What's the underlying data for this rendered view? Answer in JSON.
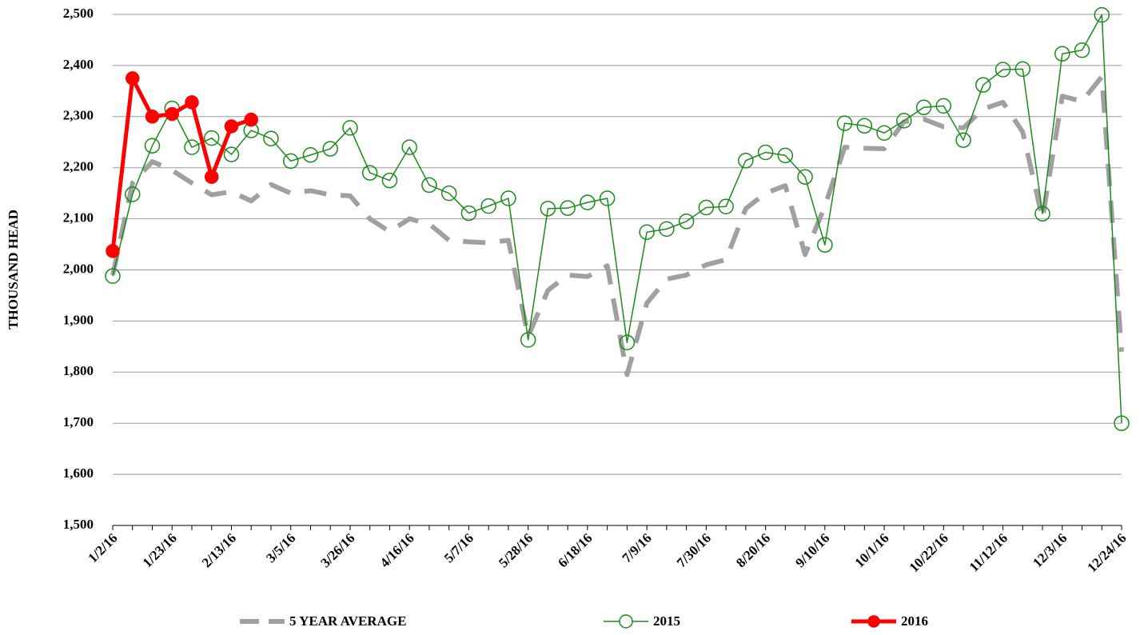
{
  "chart_data": {
    "type": "line",
    "y_label": "THOUSAND HEAD",
    "categories": [
      "1/2/16",
      null,
      null,
      "1/23/16",
      null,
      null,
      "2/13/16",
      null,
      null,
      "3/5/16",
      null,
      null,
      "3/26/16",
      null,
      null,
      "4/16/16",
      null,
      null,
      "5/7/16",
      null,
      null,
      "5/28/16",
      null,
      null,
      "6/18/16",
      null,
      null,
      "7/9/16",
      null,
      null,
      "7/30/16",
      null,
      null,
      "8/20/16",
      null,
      null,
      "9/10/16",
      null,
      null,
      "10/1/16",
      null,
      null,
      "10/22/16",
      null,
      null,
      "11/12/16",
      null,
      null,
      "12/3/16",
      null,
      null,
      "12/24/16"
    ],
    "ylim": [
      1500,
      2500
    ],
    "yticks": [
      {
        "value": 1500,
        "label": "1,500"
      },
      {
        "value": 1600,
        "label": "1,600"
      },
      {
        "value": 1700,
        "label": "1,700"
      },
      {
        "value": 1800,
        "label": "1,800"
      },
      {
        "value": 1900,
        "label": "1,900"
      },
      {
        "value": 2000,
        "label": "2,000"
      },
      {
        "value": 2100,
        "label": "2,100"
      },
      {
        "value": 2200,
        "label": "2,200"
      },
      {
        "value": 2300,
        "label": "2,300"
      },
      {
        "value": 2400,
        "label": "2,400"
      },
      {
        "value": 2500,
        "label": "2,500"
      }
    ],
    "grid": true,
    "legend": "bottom",
    "series": [
      {
        "name": "5 YEAR AVERAGE",
        "color": "#a0a0a0",
        "style": "dashed",
        "marker": "none",
        "values": [
          1990,
          2170,
          2212,
          2195,
          2170,
          2147,
          2153,
          2135,
          2167,
          2150,
          2155,
          2147,
          2145,
          2100,
          2075,
          2100,
          2090,
          2058,
          2055,
          2053,
          2058,
          1870,
          1960,
          1990,
          1987,
          2008,
          1795,
          1935,
          1982,
          1990,
          2010,
          2020,
          2120,
          2150,
          2165,
          2030,
          2125,
          2240,
          2238,
          2237,
          2290,
          2295,
          2280,
          2278,
          2315,
          2328,
          2270,
          2100,
          2340,
          2330,
          2378,
          1840
        ]
      },
      {
        "name": "2015",
        "color": "#1a8a1a",
        "style": "solid",
        "marker": "open-circle",
        "values": [
          1988,
          2148,
          2243,
          2316,
          2240,
          2258,
          2226,
          2273,
          2257,
          2213,
          2225,
          2237,
          2278,
          2190,
          2175,
          2240,
          2166,
          2150,
          2111,
          2125,
          2140,
          1863,
          2120,
          2121,
          2132,
          2140,
          1858,
          2074,
          2080,
          2095,
          2122,
          2124,
          2214,
          2230,
          2224,
          2182,
          2049,
          2287,
          2282,
          2268,
          2292,
          2318,
          2321,
          2254,
          2362,
          2392,
          2393,
          2110,
          2423,
          2430,
          2499,
          1700
        ]
      },
      {
        "name": "2016",
        "color": "#ff0000",
        "style": "bold",
        "marker": "filled-circle",
        "values": [
          2037,
          2375,
          2300,
          2305,
          2328,
          2182,
          2281,
          2294,
          null,
          null,
          null,
          null,
          null,
          null,
          null,
          null,
          null,
          null,
          null,
          null,
          null,
          null,
          null,
          null,
          null,
          null,
          null,
          null,
          null,
          null,
          null,
          null,
          null,
          null,
          null,
          null,
          null,
          null,
          null,
          null,
          null,
          null,
          null,
          null,
          null,
          null,
          null,
          null,
          null,
          null,
          null,
          null
        ]
      }
    ]
  }
}
